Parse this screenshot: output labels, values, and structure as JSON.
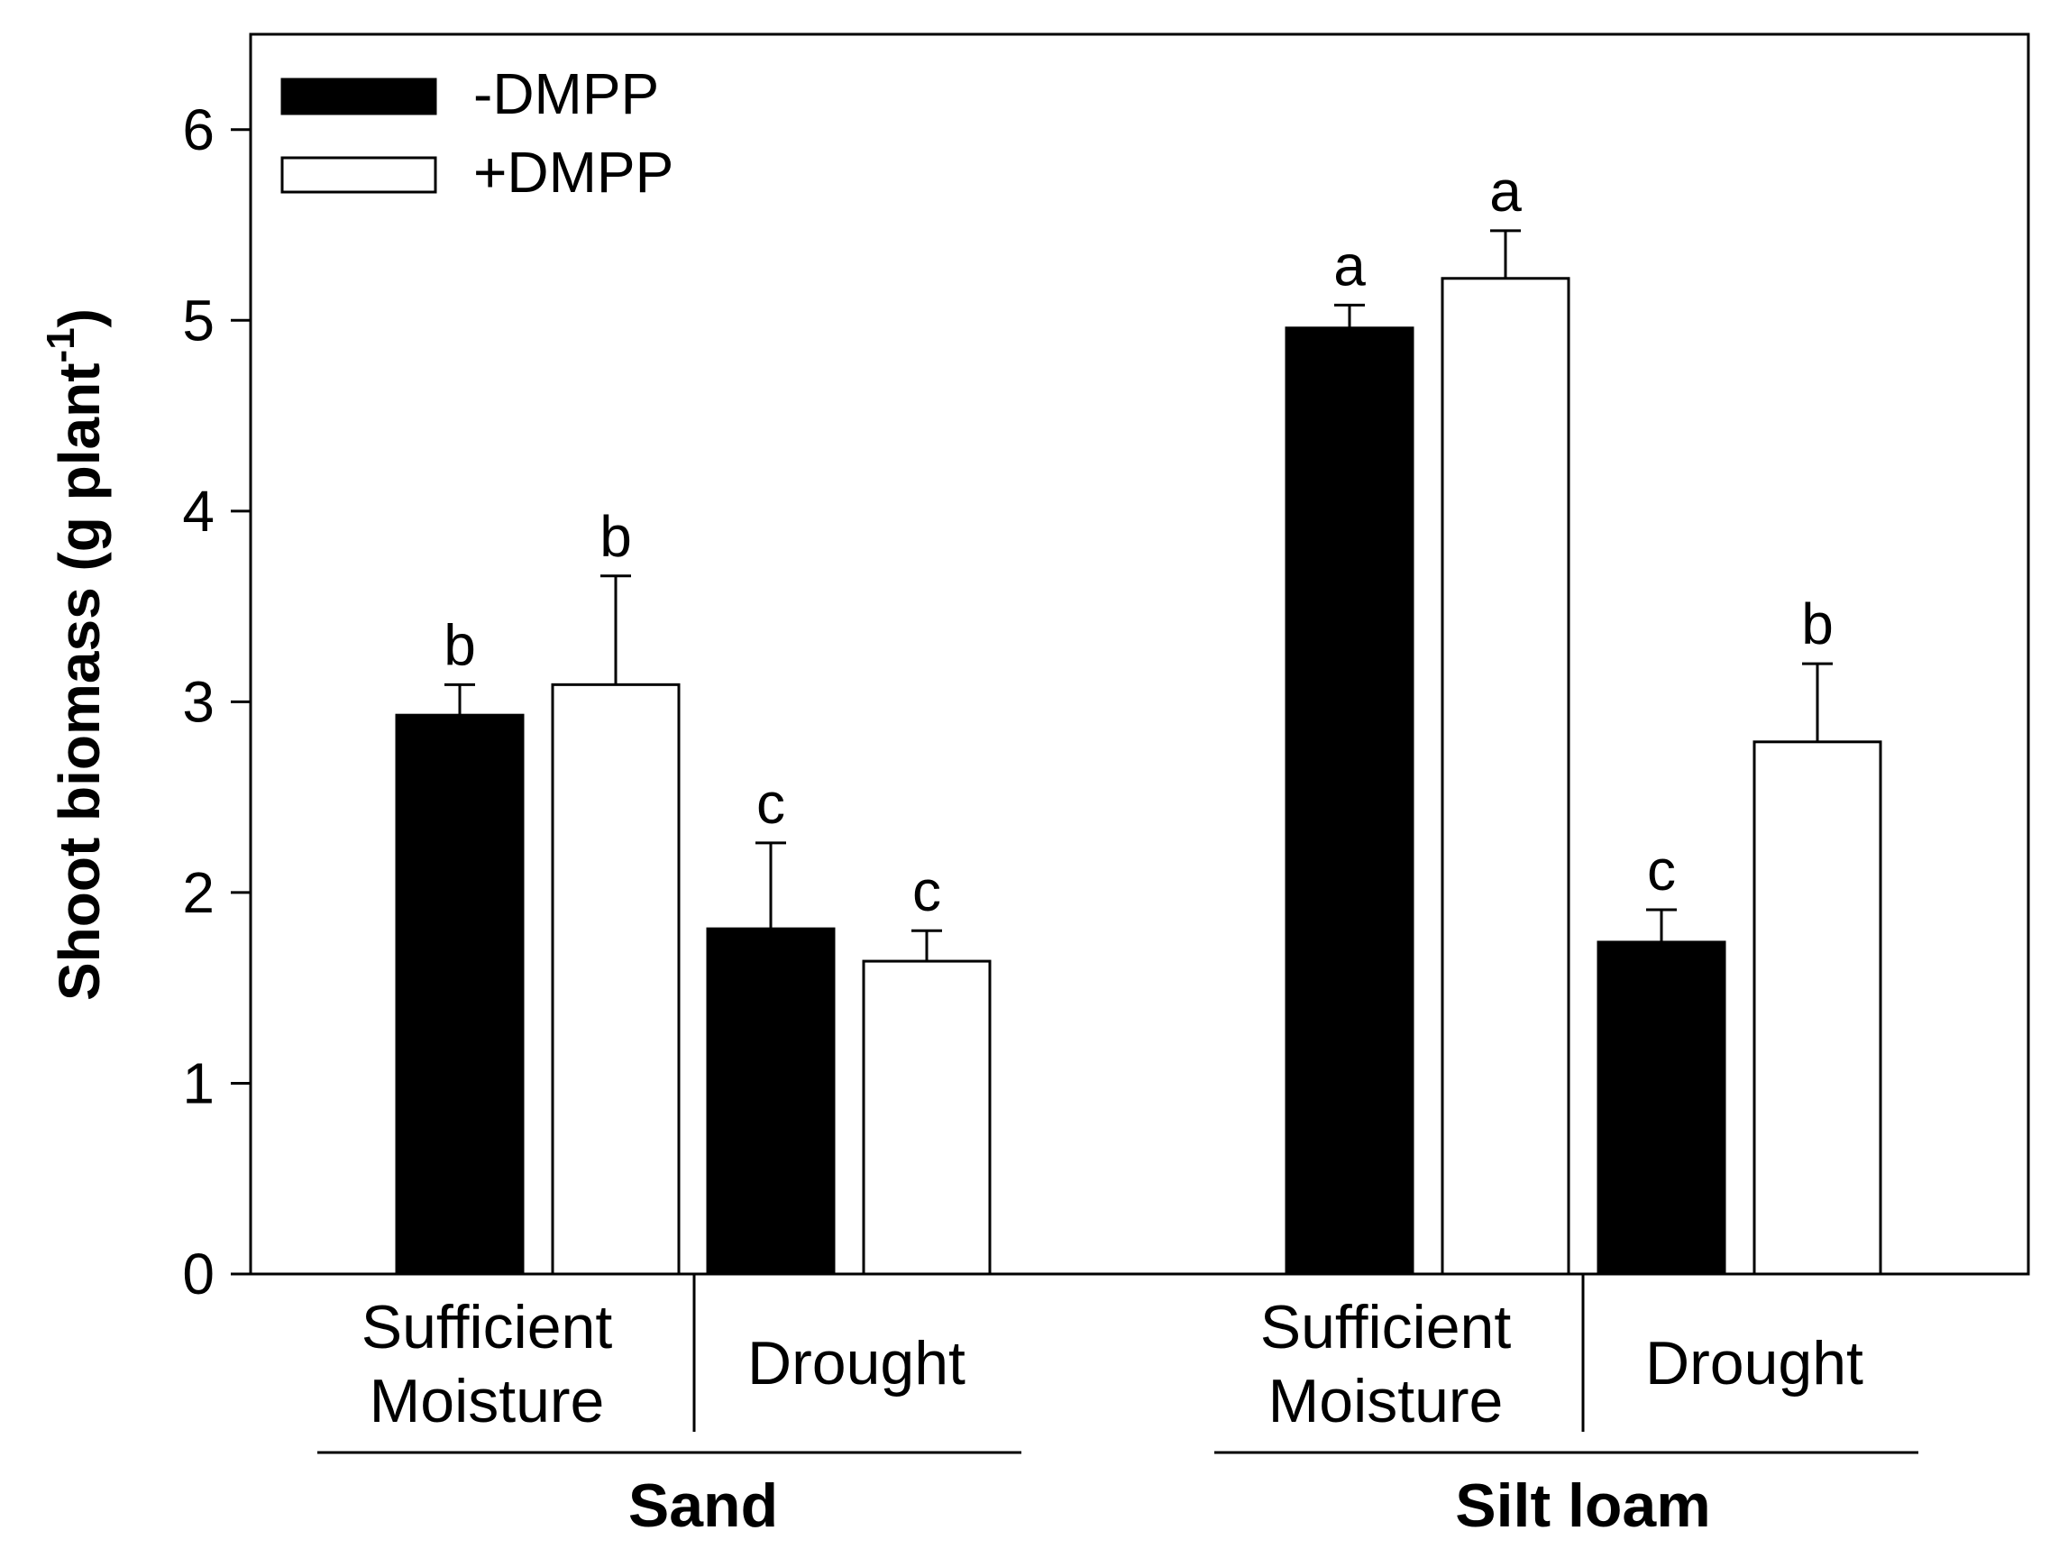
{
  "chart_data": {
    "type": "bar",
    "title": "",
    "ylabel": "Shoot biomass (g plant",
    "ylabel_superscript": "-1",
    "ylabel_suffix": ")",
    "ylim": [
      0,
      6.5
    ],
    "yticks": [
      "0",
      "1",
      "2",
      "3",
      "4",
      "5",
      "6"
    ],
    "legend_position": "top-left",
    "series": [
      {
        "name": "-DMPP",
        "fill": "#000000"
      },
      {
        "name": "+DMPP",
        "fill": "#ffffff"
      }
    ],
    "groups": [
      {
        "name": "Sand",
        "categories": [
          {
            "label_lines": [
              "Sufficient",
              "Moisture"
            ],
            "values": [
              2.93,
              3.09
            ],
            "errors": [
              0.16,
              0.57
            ],
            "letters": [
              "b",
              "b"
            ]
          },
          {
            "label_lines": [
              "Drought"
            ],
            "values": [
              1.81,
              1.64
            ],
            "errors": [
              0.45,
              0.16
            ],
            "letters": [
              "c",
              "c"
            ]
          }
        ]
      },
      {
        "name": "Silt loam",
        "categories": [
          {
            "label_lines": [
              "Sufficient",
              "Moisture"
            ],
            "values": [
              4.96,
              5.22
            ],
            "errors": [
              0.12,
              0.25
            ],
            "letters": [
              "a",
              "a"
            ]
          },
          {
            "label_lines": [
              "Drought"
            ],
            "values": [
              1.74,
              2.79
            ],
            "errors": [
              0.17,
              0.41
            ],
            "letters": [
              "c",
              "b"
            ]
          }
        ]
      }
    ]
  }
}
